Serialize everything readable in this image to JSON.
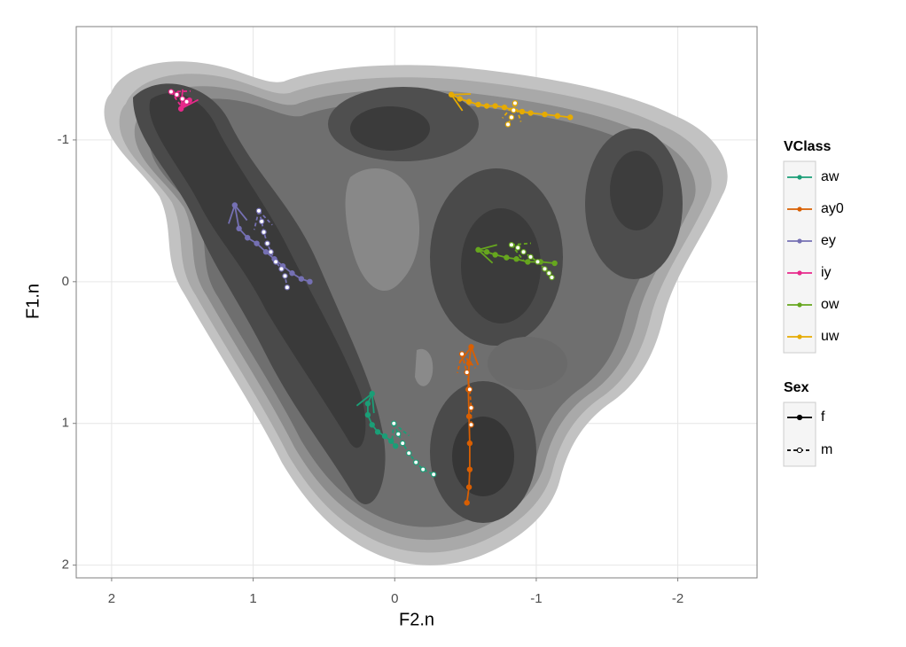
{
  "chart_data": {
    "type": "trajectory",
    "x_label": "F2.n",
    "y_label": "F1.n",
    "xlim": [
      2.25,
      -2.56
    ],
    "ylim": [
      2.09,
      -1.8
    ],
    "xticks": [
      2,
      1,
      0,
      -1,
      -2
    ],
    "yticks": [
      -1,
      0,
      1,
      2
    ],
    "grid": true,
    "legend_title": "VClass",
    "vclasses": [
      {
        "name": "aw",
        "color": "#1b9e77"
      },
      {
        "name": "ay0",
        "color": "#d95f02"
      },
      {
        "name": "ey",
        "color": "#7570b3"
      },
      {
        "name": "iy",
        "color": "#e7298a"
      },
      {
        "name": "ow",
        "color": "#66a61e"
      },
      {
        "name": "uw",
        "color": "#e6ab02"
      }
    ],
    "sex_title": "Sex",
    "sexes": [
      {
        "name": "f",
        "line": "solid"
      },
      {
        "name": "m",
        "line": "dashed"
      }
    ],
    "series": [
      {
        "vclass": "iy",
        "sex": "f",
        "x": [
          1.51,
          1.49,
          1.47,
          1.45
        ],
        "y": [
          -1.22,
          -1.25,
          -1.27,
          -1.28
        ]
      },
      {
        "vclass": "iy",
        "sex": "m",
        "x": [
          1.58,
          1.54,
          1.5,
          1.47
        ],
        "y": [
          -1.34,
          -1.32,
          -1.29,
          -1.27
        ]
      },
      {
        "vclass": "ey",
        "sex": "f",
        "x": [
          1.13,
          1.1,
          1.04,
          0.975,
          0.91,
          0.85,
          0.79,
          0.725,
          0.66,
          0.6
        ],
        "y": [
          -0.54,
          -0.375,
          -0.31,
          -0.27,
          -0.21,
          -0.16,
          -0.11,
          -0.06,
          -0.02,
          0.0
        ]
      },
      {
        "vclass": "ey",
        "sex": "m",
        "x": [
          0.96,
          0.94,
          0.925,
          0.9,
          0.875,
          0.84,
          0.8,
          0.775,
          0.76
        ],
        "y": [
          -0.5,
          -0.425,
          -0.35,
          -0.27,
          -0.21,
          -0.14,
          -0.09,
          -0.04,
          0.04
        ]
      },
      {
        "vclass": "uw",
        "sex": "f",
        "x": [
          -0.4,
          -0.46,
          -0.525,
          -0.59,
          -0.65,
          -0.71,
          -0.775,
          -0.84,
          -0.9,
          -0.96,
          -1.06,
          -1.15,
          -1.24
        ],
        "y": [
          -1.32,
          -1.29,
          -1.27,
          -1.25,
          -1.24,
          -1.24,
          -1.23,
          -1.21,
          -1.2,
          -1.19,
          -1.18,
          -1.17,
          -1.16
        ]
      },
      {
        "vclass": "uw",
        "sex": "m",
        "x": [
          -0.85,
          -0.84,
          -0.825,
          -0.8
        ],
        "y": [
          -1.26,
          -1.21,
          -1.16,
          -1.11
        ]
      },
      {
        "vclass": "ow",
        "sex": "f",
        "x": [
          -0.59,
          -0.65,
          -0.71,
          -0.79,
          -0.86,
          -0.94,
          -1.03,
          -1.13
        ],
        "y": [
          -0.225,
          -0.21,
          -0.19,
          -0.17,
          -0.16,
          -0.14,
          -0.14,
          -0.13
        ]
      },
      {
        "vclass": "ow",
        "sex": "m",
        "x": [
          -0.825,
          -0.87,
          -0.91,
          -0.96,
          -1.01,
          -1.06,
          -1.09,
          -1.11
        ],
        "y": [
          -0.26,
          -0.24,
          -0.21,
          -0.175,
          -0.14,
          -0.09,
          -0.06,
          -0.03
        ]
      },
      {
        "vclass": "ay0",
        "sex": "f",
        "x": [
          -0.54,
          -0.525,
          -0.52,
          -0.525,
          -0.53,
          -0.53,
          -0.525,
          -0.51
        ],
        "y": [
          0.46,
          0.575,
          0.76,
          0.95,
          1.14,
          1.325,
          1.45,
          1.56
        ]
      },
      {
        "vclass": "ay0",
        "sex": "m",
        "x": [
          -0.475,
          -0.51,
          -0.53,
          -0.54,
          -0.54
        ],
        "y": [
          0.51,
          0.64,
          0.76,
          0.89,
          1.01
        ]
      },
      {
        "vclass": "aw",
        "sex": "f",
        "x": [
          0.16,
          0.19,
          0.19,
          0.16,
          0.12,
          0.07,
          0.025,
          -0.006
        ],
        "y": [
          0.79,
          0.86,
          0.94,
          1.01,
          1.06,
          1.09,
          1.125,
          1.16
        ]
      },
      {
        "vclass": "aw",
        "sex": "m",
        "x": [
          0.006,
          -0.025,
          -0.056,
          -0.1,
          -0.15,
          -0.2,
          -0.275
        ],
        "y": [
          1.0,
          1.075,
          1.14,
          1.21,
          1.275,
          1.325,
          1.36
        ]
      }
    ]
  }
}
